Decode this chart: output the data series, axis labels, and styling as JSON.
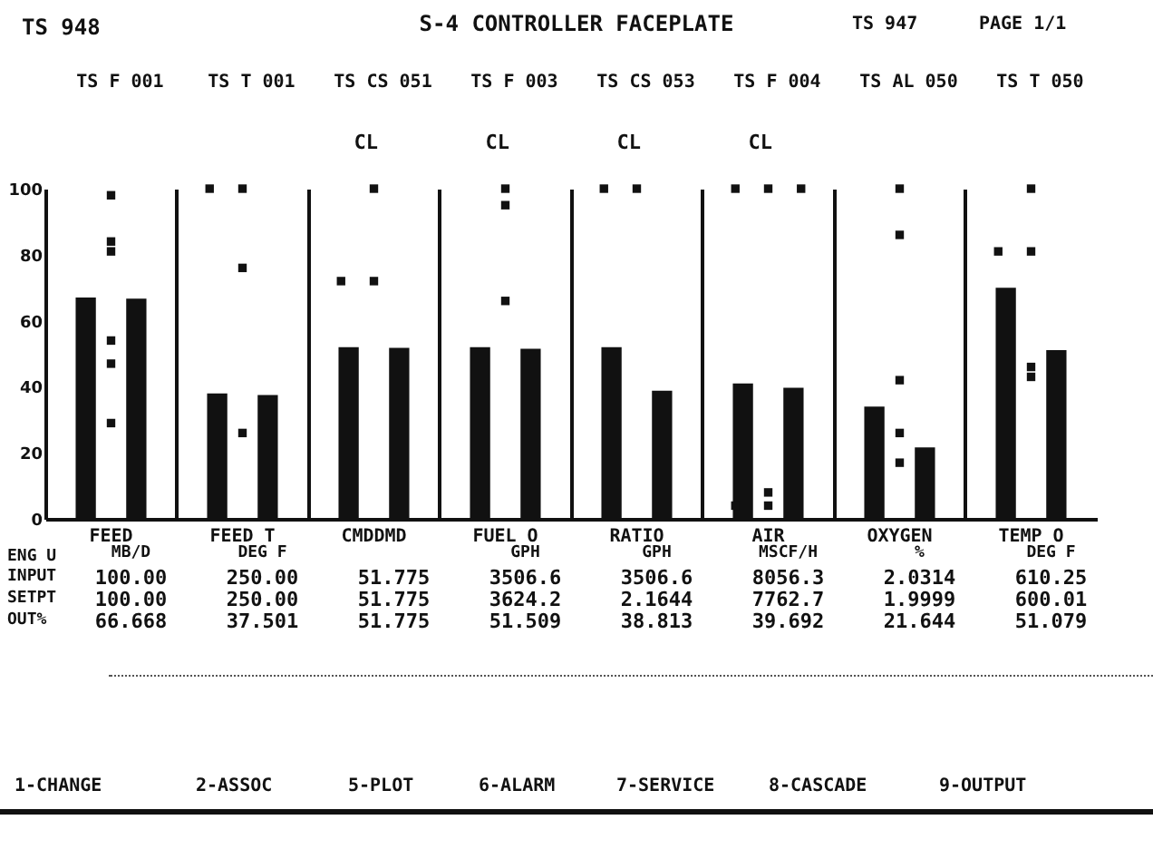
{
  "chart_data": {
    "type": "bar",
    "title": "S-4 CONTROLLER FACEPLATE",
    "categories": [
      "FEED",
      "FEED T",
      "CMDDMD",
      "FUEL O",
      "RATIO",
      "AIR",
      "OXYGEN",
      "TEMP O"
    ],
    "series": [
      {
        "type": "bar",
        "color": "#111111",
        "values": [
          67,
          38,
          52,
          52,
          52,
          41,
          34,
          70
        ]
      },
      {
        "type": "bar",
        "color": "#111111",
        "values": [
          66.668,
          37.501,
          51.775,
          51.509,
          38.813,
          39.692,
          21.644,
          51.079
        ]
      },
      {
        "type": "scatter",
        "color": "#111111",
        "x": [
          "FEED",
          "FEED",
          "FEED",
          "FEED",
          "FEED",
          "FEED",
          "FEED T",
          "FEED T",
          "FEED T",
          "FEED T",
          "CMDDMD",
          "CMDDMD",
          "CMDDMD",
          "FUEL O",
          "FUEL O",
          "FUEL O",
          "RATIO",
          "RATIO",
          "AIR",
          "AIR",
          "AIR",
          "AIR",
          "AIR",
          "AIR",
          "OXYGEN",
          "OXYGEN",
          "OXYGEN",
          "OXYGEN",
          "OXYGEN",
          "TEMP O",
          "TEMP O",
          "TEMP O",
          "TEMP O",
          "TEMP O"
        ],
        "values": [
          47,
          84,
          81,
          54,
          98,
          29,
          100,
          100,
          76,
          26,
          72,
          72,
          100,
          95,
          100,
          66,
          100,
          100,
          100,
          100,
          100,
          8,
          4,
          4,
          86,
          42,
          26,
          17,
          100,
          81,
          81,
          43,
          46,
          100
        ]
      }
    ],
    "ylim": [
      0,
      100
    ],
    "yticks": [
      0,
      20,
      40,
      60,
      80,
      100
    ],
    "grid": "x",
    "marker": "square",
    "annotations": [
      "TS 948",
      "TS 947",
      "PAGE 1/1",
      "TS F 001",
      "TS T 001",
      "TS CS 051",
      "TS F 003",
      "TS CS 053",
      "TS F 004",
      "TS AL 050",
      "TS T 050",
      "CL",
      "CL",
      "CL",
      "CL",
      "ENG U",
      "INPUT",
      "SETPT",
      "OUT%",
      "MB/D",
      "DEG F",
      "GPH",
      "GPH",
      "MSCF/H",
      "%",
      "DEG F",
      "100.00",
      "250.00",
      "51.775",
      "3506.6",
      "3506.6",
      "8056.3",
      "2.0314",
      "610.25",
      "100.00",
      "250.00",
      "51.775",
      "3624.2",
      "2.1644",
      "7762.7",
      "1.9999",
      "600.01",
      "66.668",
      "37.501",
      "51.775",
      "51.509",
      "38.813",
      "39.692",
      "21.644",
      "51.079",
      "1-CHANGE",
      "2-ASSOC",
      "5-PLOT",
      "6-ALARM",
      "7-SERVICE",
      "8-CASCADE",
      "9-OUTPUT"
    ]
  }
}
